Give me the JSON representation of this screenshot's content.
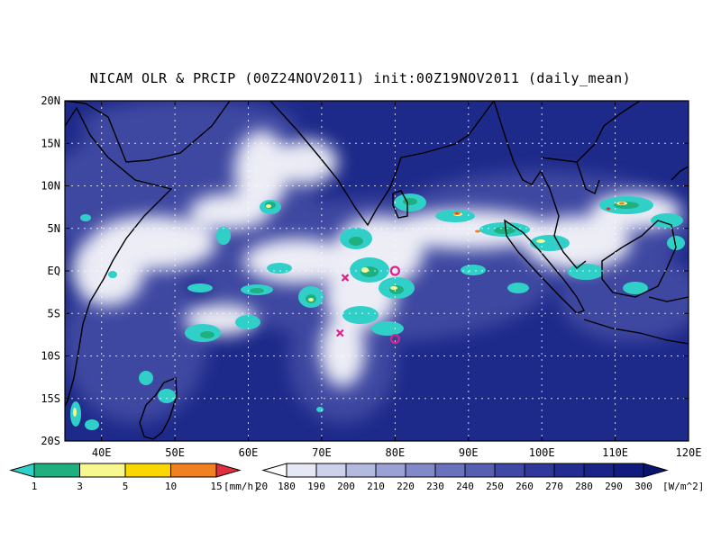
{
  "title": "NICAM OLR & PRCIP (00Z24NOV2011) init:00Z19NOV2011 (daily_mean)",
  "map": {
    "lon_range": [
      35,
      120
    ],
    "lat_range": [
      -20,
      20
    ],
    "lon_ticks": [
      {
        "lon": 40,
        "label": "40E"
      },
      {
        "lon": 50,
        "label": "50E"
      },
      {
        "lon": 60,
        "label": "60E"
      },
      {
        "lon": 70,
        "label": "70E"
      },
      {
        "lon": 80,
        "label": "80E"
      },
      {
        "lon": 90,
        "label": "90E"
      },
      {
        "lon": 100,
        "label": "100E"
      },
      {
        "lon": 110,
        "label": "110E"
      },
      {
        "lon": 120,
        "label": "120E"
      }
    ],
    "lat_ticks": [
      {
        "lat": 20,
        "label": "20N"
      },
      {
        "lat": 15,
        "label": "15N"
      },
      {
        "lat": 10,
        "label": "10N"
      },
      {
        "lat": 5,
        "label": "5N"
      },
      {
        "lat": 0,
        "label": "EQ"
      },
      {
        "lat": -5,
        "label": "5S"
      },
      {
        "lat": -10,
        "label": "10S"
      },
      {
        "lat": -15,
        "label": "15S"
      },
      {
        "lat": -20,
        "label": "20S"
      }
    ],
    "ocean_color": "#1e2a8a",
    "cloud_color": "#ffffff",
    "markers": [
      {
        "type": "x",
        "lon": 73.2,
        "lat": -0.8,
        "color": "#e0208a"
      },
      {
        "type": "x",
        "lon": 72.5,
        "lat": -7.3,
        "color": "#e0208a"
      },
      {
        "type": "o",
        "lon": 80.0,
        "lat": 0.0,
        "color": "#e0208a"
      },
      {
        "type": "o",
        "lon": 80.0,
        "lat": -8.0,
        "color": "#e0208a"
      }
    ]
  },
  "precip_colorbar": {
    "labels": [
      "1",
      "3",
      "5",
      "10",
      "15",
      "20"
    ],
    "unit": "[mm/h]",
    "colors": [
      "#30d0c8",
      "#20b080",
      "#f8f890",
      "#f8d800",
      "#f08020",
      "#e03040"
    ]
  },
  "olr_colorbar": {
    "labels": [
      "180",
      "190",
      "200",
      "210",
      "220",
      "230",
      "240",
      "250",
      "260",
      "270",
      "280",
      "290",
      "300"
    ],
    "unit": "[W/m^2]",
    "colors": [
      "#ffffff",
      "#e6e8f4",
      "#cdd1ea",
      "#b4b9df",
      "#9ba1d4",
      "#8289c8",
      "#6b72bd",
      "#575fb2",
      "#4048a6",
      "#30399b",
      "#232d90",
      "#192486",
      "#121c7c",
      "#0c1472"
    ]
  }
}
